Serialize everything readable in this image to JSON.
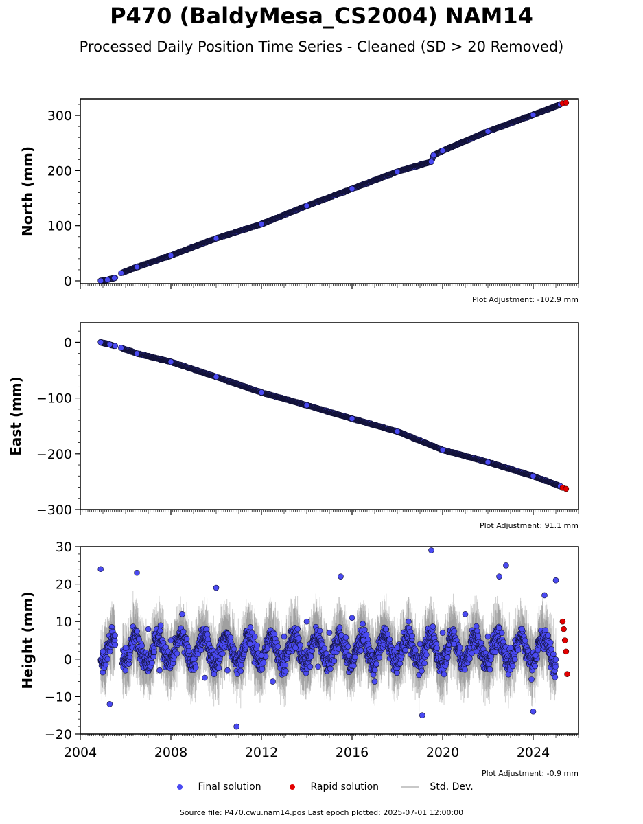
{
  "title": "P470 (BaldyMesa_CS2004) NAM14",
  "subtitle": "Processed Daily Position Time Series - Cleaned (SD > 20 Removed)",
  "footer": {
    "source": "Source file: P470.cwu.nam14.pos  Last epoch plotted: 2025-07-01 12:00:00"
  },
  "legend": [
    {
      "label": "Final solution",
      "color": "#4a4af2",
      "marker": "circle"
    },
    {
      "label": "Rapid solution",
      "color": "#e30000",
      "marker": "circle"
    },
    {
      "label": "Std. Dev.",
      "color": "#c8c8c8",
      "marker": "line"
    }
  ],
  "chart_data": [
    {
      "type": "scatter",
      "ylabel": "North (mm)",
      "adjustment": "Plot Adjustment: -102.9 mm",
      "xlim": [
        2004,
        2026
      ],
      "ylim": [
        -5,
        330
      ],
      "yticks": [
        0,
        100,
        200,
        300
      ],
      "xticks": [
        2004,
        2008,
        2012,
        2016,
        2020,
        2024
      ],
      "show_xtick_labels": false,
      "series": [
        {
          "name": "Final solution",
          "x": [
            2004.9,
            2005.2,
            2005.5,
            2005.8,
            2006.5,
            2008.0,
            2010.0,
            2012.0,
            2014.0,
            2016.0,
            2018.0,
            2019.5,
            2019.6,
            2020.0,
            2022.0,
            2024.0,
            2025.2
          ],
          "values": [
            0,
            2,
            5,
            14,
            25,
            46,
            77,
            103,
            136,
            167,
            198,
            216,
            228,
            236,
            271,
            301,
            320
          ]
        },
        {
          "name": "Rapid solution",
          "x": [
            2025.3,
            2025.45
          ],
          "values": [
            322,
            323
          ]
        }
      ]
    },
    {
      "type": "scatter",
      "ylabel": "East (mm)",
      "adjustment": "Plot Adjustment: 91.1 mm",
      "xlim": [
        2004,
        2026
      ],
      "ylim": [
        -300,
        35
      ],
      "yticks": [
        0,
        -100,
        -200,
        -300
      ],
      "xticks": [
        2004,
        2008,
        2012,
        2016,
        2020,
        2024
      ],
      "show_xtick_labels": false,
      "series": [
        {
          "name": "Final solution",
          "x": [
            2004.9,
            2005.3,
            2005.8,
            2006.5,
            2008.0,
            2010.0,
            2012.0,
            2014.0,
            2016.0,
            2018.0,
            2020.0,
            2022.0,
            2024.0,
            2025.2
          ],
          "values": [
            0,
            -4,
            -10,
            -20,
            -35,
            -62,
            -90,
            -113,
            -137,
            -160,
            -193,
            -215,
            -240,
            -258
          ]
        },
        {
          "name": "Rapid solution",
          "x": [
            2025.3,
            2025.45
          ],
          "values": [
            -261,
            -263
          ]
        }
      ]
    },
    {
      "type": "scatter",
      "ylabel": "Height (mm)",
      "adjustment": "Plot Adjustment: -0.9 mm",
      "xlim": [
        2004,
        2026
      ],
      "ylim": [
        -20,
        30
      ],
      "yticks": [
        -20,
        -10,
        0,
        10,
        20,
        30
      ],
      "xticks": [
        2004,
        2008,
        2012,
        2016,
        2020,
        2024
      ],
      "xtick_labels": [
        "2004",
        "2008",
        "2012",
        "2016",
        "2020",
        "2024"
      ],
      "show_xtick_labels": true,
      "series": [
        {
          "name": "Final solution",
          "x": [
            2004.9,
            2005.0,
            2005.3,
            2006.0,
            2006.5,
            2007.0,
            2007.5,
            2008.0,
            2008.5,
            2009.0,
            2009.5,
            2010.0,
            2010.5,
            2010.9,
            2011.5,
            2012.0,
            2012.5,
            2013.0,
            2013.5,
            2014.0,
            2014.5,
            2015.0,
            2015.5,
            2016.0,
            2016.5,
            2017.0,
            2017.5,
            2018.0,
            2018.5,
            2019.0,
            2019.1,
            2019.5,
            2020.0,
            2020.5,
            2021.0,
            2021.5,
            2022.0,
            2022.5,
            2022.8,
            2023.0,
            2023.5,
            2024.0,
            2024.1,
            2024.5,
            2025.0
          ],
          "values": [
            24,
            2,
            -12,
            3,
            23,
            8,
            -3,
            5,
            12,
            0,
            -5,
            19,
            -3,
            -18,
            4,
            1,
            -6,
            6,
            3,
            10,
            -2,
            7,
            22,
            11,
            5,
            -6,
            8,
            3,
            10,
            4,
            -15,
            29,
            7,
            4,
            12,
            2,
            6,
            22,
            25,
            3,
            8,
            -14,
            1,
            17,
            21
          ]
        },
        {
          "name": "Rapid solution",
          "x": [
            2025.3,
            2025.35,
            2025.4,
            2025.45,
            2025.5
          ],
          "values": [
            10,
            8,
            5,
            2,
            -4
          ]
        }
      ]
    }
  ]
}
